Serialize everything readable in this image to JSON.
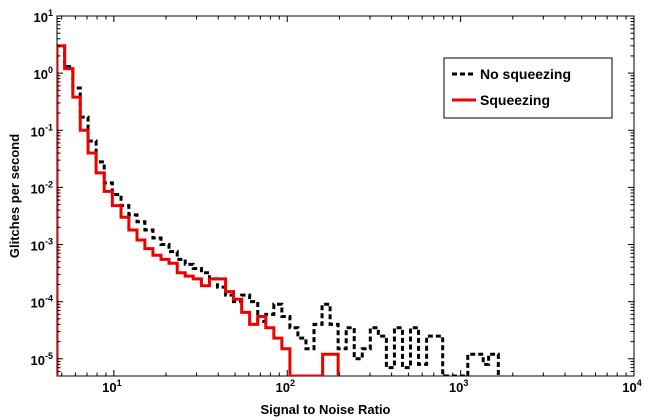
{
  "chart_data": {
    "type": "line",
    "title": "",
    "xlabel": "Signal to Noise Ratio",
    "ylabel": "Glitches per second",
    "xscale": "log",
    "yscale": "log",
    "xlim": [
      4.7,
      10000
    ],
    "ylim": [
      5e-06,
      10
    ],
    "xticks": [
      {
        "value": 10,
        "mantissa": "10",
        "exponent": "1"
      },
      {
        "value": 100,
        "mantissa": "10",
        "exponent": "2"
      },
      {
        "value": 1000,
        "mantissa": "10",
        "exponent": "3"
      },
      {
        "value": 10000,
        "mantissa": "10",
        "exponent": "4"
      }
    ],
    "yticks": [
      {
        "value": 1e-05,
        "mantissa": "10",
        "exponent": "-5"
      },
      {
        "value": 0.0001,
        "mantissa": "10",
        "exponent": "-4"
      },
      {
        "value": 0.001,
        "mantissa": "10",
        "exponent": "-3"
      },
      {
        "value": 0.01,
        "mantissa": "10",
        "exponent": "-2"
      },
      {
        "value": 0.1,
        "mantissa": "10",
        "exponent": "-1"
      },
      {
        "value": 1,
        "mantissa": "10",
        "exponent": "0"
      },
      {
        "value": 10,
        "mantissa": "10",
        "exponent": "1"
      }
    ],
    "grid": false,
    "legend_position": "top-right",
    "series": [
      {
        "name": "No squeezing",
        "style": "dashed",
        "color": "#000000",
        "points": [
          [
            4.7,
            5e-06
          ],
          [
            4.7,
            3.0
          ],
          [
            5.2,
            3.0
          ],
          [
            5.2,
            1.3
          ],
          [
            5.8,
            1.3
          ],
          [
            5.8,
            0.55
          ],
          [
            6.4,
            0.55
          ],
          [
            6.4,
            0.17
          ],
          [
            7.1,
            0.17
          ],
          [
            7.1,
            0.065
          ],
          [
            7.9,
            0.065
          ],
          [
            7.9,
            0.028
          ],
          [
            8.8,
            0.028
          ],
          [
            8.8,
            0.012
          ],
          [
            9.8,
            0.012
          ],
          [
            9.8,
            0.0075
          ],
          [
            11.0,
            0.0075
          ],
          [
            11.0,
            0.0048
          ],
          [
            12.2,
            0.0048
          ],
          [
            12.2,
            0.0033
          ],
          [
            13.6,
            0.0033
          ],
          [
            13.6,
            0.0025
          ],
          [
            15.1,
            0.0025
          ],
          [
            15.1,
            0.0018
          ],
          [
            16.8,
            0.0018
          ],
          [
            16.8,
            0.0013
          ],
          [
            18.7,
            0.0013
          ],
          [
            18.7,
            0.001
          ],
          [
            20.8,
            0.001
          ],
          [
            20.8,
            0.00075
          ],
          [
            23.2,
            0.00075
          ],
          [
            23.2,
            0.00055
          ],
          [
            25.8,
            0.00055
          ],
          [
            25.8,
            0.00045
          ],
          [
            28.7,
            0.00045
          ],
          [
            28.7,
            0.00038
          ],
          [
            32.0,
            0.00038
          ],
          [
            32.0,
            0.00032
          ],
          [
            35.6,
            0.00032
          ],
          [
            35.6,
            0.00025
          ],
          [
            39.6,
            0.00025
          ],
          [
            39.6,
            0.00018
          ],
          [
            44.1,
            0.00018
          ],
          [
            44.1,
            0.00013
          ],
          [
            49.0,
            0.00013
          ],
          [
            49.0,
            0.0001
          ],
          [
            54.6,
            0.0001
          ],
          [
            54.6,
            0.00013
          ],
          [
            60.7,
            0.00013
          ],
          [
            60.7,
            0.0001
          ],
          [
            67.6,
            0.0001
          ],
          [
            67.6,
            4.5e-05
          ],
          [
            75.2,
            4.5e-05
          ],
          [
            75.2,
            6e-05
          ],
          [
            83.7,
            6e-05
          ],
          [
            83.7,
            9e-05
          ],
          [
            93.1,
            9e-05
          ],
          [
            93.1,
            5.5e-05
          ],
          [
            103.6,
            5.5e-05
          ],
          [
            103.6,
            3.5e-05
          ],
          [
            115.2,
            3.5e-05
          ],
          [
            115.2,
            2.3e-05
          ],
          [
            128.2,
            2.3e-05
          ],
          [
            128.2,
            1.5e-05
          ],
          [
            142.7,
            1.5e-05
          ],
          [
            142.7,
            4e-05
          ],
          [
            158.8,
            4e-05
          ],
          [
            158.8,
            9e-05
          ],
          [
            176.7,
            9e-05
          ],
          [
            176.7,
            4e-05
          ],
          [
            196.6,
            4e-05
          ],
          [
            196.6,
            1.5e-05
          ],
          [
            218.8,
            1.5e-05
          ],
          [
            218.8,
            3.5e-05
          ],
          [
            243.4,
            3.5e-05
          ],
          [
            243.4,
            1e-05
          ],
          [
            270.8,
            1e-05
          ],
          [
            270.8,
            1.5e-05
          ],
          [
            301.3,
            1.5e-05
          ],
          [
            301.3,
            3.5e-05
          ],
          [
            335.3,
            3.5e-05
          ],
          [
            335.3,
            2.5e-05
          ],
          [
            373.1,
            2.5e-05
          ],
          [
            373.1,
            7e-06
          ],
          [
            415.2,
            7e-06
          ],
          [
            415.2,
            3.5e-05
          ],
          [
            462.0,
            3.5e-05
          ],
          [
            462.0,
            7e-06
          ],
          [
            514.0,
            7e-06
          ],
          [
            514.0,
            3.5e-05
          ],
          [
            572.0,
            3.5e-05
          ],
          [
            572.0,
            8e-06
          ],
          [
            636.4,
            8e-06
          ],
          [
            636.4,
            2.5e-05
          ],
          [
            708.2,
            2.5e-05
          ],
          [
            708.2,
            2.5e-05
          ],
          [
            788.0,
            2.5e-05
          ],
          [
            788.0,
            5e-06
          ],
          [
            1100.0,
            5e-06
          ],
          [
            1100.0,
            1.2e-05
          ],
          [
            1350.0,
            1.2e-05
          ],
          [
            1350.0,
            8e-06
          ],
          [
            1450.0,
            8e-06
          ],
          [
            1450.0,
            1.2e-05
          ],
          [
            1650.0,
            1.2e-05
          ],
          [
            1650.0,
            5e-06
          ]
        ]
      },
      {
        "name": "Squeezing",
        "style": "solid",
        "color": "#ee0000",
        "points": [
          [
            4.7,
            5e-06
          ],
          [
            4.7,
            3.0
          ],
          [
            5.2,
            3.0
          ],
          [
            5.2,
            1.2
          ],
          [
            5.8,
            1.2
          ],
          [
            5.8,
            0.38
          ],
          [
            6.4,
            0.38
          ],
          [
            6.4,
            0.1
          ],
          [
            7.1,
            0.1
          ],
          [
            7.1,
            0.04
          ],
          [
            7.9,
            0.04
          ],
          [
            7.9,
            0.018
          ],
          [
            8.8,
            0.018
          ],
          [
            8.8,
            0.0085
          ],
          [
            9.8,
            0.0085
          ],
          [
            9.8,
            0.0048
          ],
          [
            11.0,
            0.0048
          ],
          [
            11.0,
            0.003
          ],
          [
            12.2,
            0.003
          ],
          [
            12.2,
            0.0018
          ],
          [
            13.6,
            0.0018
          ],
          [
            13.6,
            0.0012
          ],
          [
            15.1,
            0.0012
          ],
          [
            15.1,
            0.00085
          ],
          [
            16.8,
            0.00085
          ],
          [
            16.8,
            0.00065
          ],
          [
            18.7,
            0.00065
          ],
          [
            18.7,
            0.00055
          ],
          [
            20.8,
            0.00055
          ],
          [
            20.8,
            0.00047
          ],
          [
            23.2,
            0.00047
          ],
          [
            23.2,
            0.00032
          ],
          [
            25.8,
            0.00032
          ],
          [
            25.8,
            0.00028
          ],
          [
            28.7,
            0.00028
          ],
          [
            28.7,
            0.00025
          ],
          [
            32.0,
            0.00025
          ],
          [
            32.0,
            0.00019
          ],
          [
            35.6,
            0.00019
          ],
          [
            35.6,
            0.00025
          ],
          [
            44.1,
            0.00025
          ],
          [
            44.1,
            0.00015
          ],
          [
            49.0,
            0.00015
          ],
          [
            49.0,
            0.00011
          ],
          [
            54.6,
            0.00011
          ],
          [
            54.6,
            6.5e-05
          ],
          [
            60.7,
            6.5e-05
          ],
          [
            60.7,
            4e-05
          ],
          [
            67.6,
            4e-05
          ],
          [
            67.6,
            5.5e-05
          ],
          [
            75.2,
            5.5e-05
          ],
          [
            75.2,
            3.5e-05
          ],
          [
            83.7,
            3.5e-05
          ],
          [
            83.7,
            2.3e-05
          ],
          [
            93.1,
            2.3e-05
          ],
          [
            93.1,
            1.5e-05
          ],
          [
            103.6,
            1.5e-05
          ],
          [
            103.6,
            5e-06
          ],
          [
            160.0,
            5e-06
          ],
          [
            160.0,
            1.2e-05
          ],
          [
            196.6,
            1.2e-05
          ],
          [
            196.6,
            5e-06
          ]
        ]
      }
    ]
  }
}
